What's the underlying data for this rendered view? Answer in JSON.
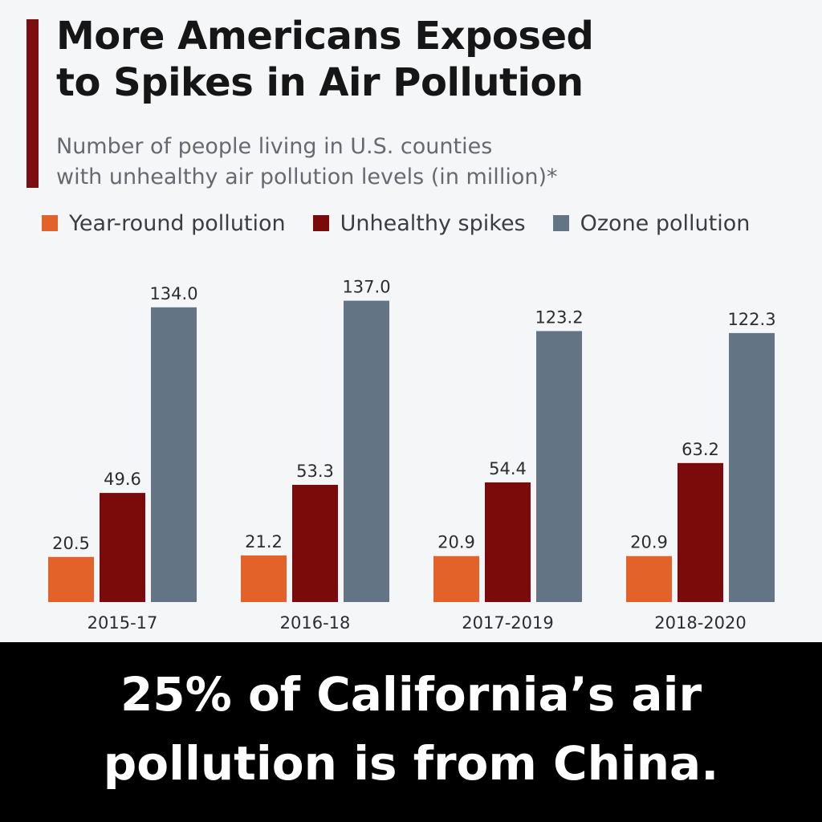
{
  "header": {
    "title_line1": "More Americans Exposed",
    "title_line2": "to Spikes in Air Pollution",
    "subtitle_line1": "Number of people living in U.S. counties",
    "subtitle_line2": "with unhealthy air pollution levels (in million)*"
  },
  "colors": {
    "accent": "#7b0f0f",
    "year_round": "#e3622a",
    "spikes": "#7b0a0a",
    "ozone": "#637585"
  },
  "chart_data": {
    "type": "bar",
    "title": "More Americans Exposed to Spikes in Air Pollution",
    "subtitle": "Number of people living in U.S. counties with unhealthy air pollution levels (in million)*",
    "categories": [
      "2015-17",
      "2016-18",
      "2017-2019",
      "2018-2020"
    ],
    "series": [
      {
        "name": "Year-round pollution",
        "values": [
          20.5,
          21.2,
          20.9,
          20.9
        ],
        "color": "#e3622a"
      },
      {
        "name": "Unhealthy spikes",
        "values": [
          49.6,
          53.3,
          54.4,
          63.2
        ],
        "color": "#7b0a0a"
      },
      {
        "name": "Ozone pollution",
        "values": [
          134.0,
          137.0,
          123.2,
          122.3
        ],
        "color": "#637585"
      }
    ],
    "ylim": [
      0,
      150
    ],
    "grid": false,
    "legend": "top-left",
    "xlabel": "",
    "ylabel": ""
  },
  "caption": {
    "line1": "25% of California’s air",
    "line2": "pollution is from China."
  }
}
